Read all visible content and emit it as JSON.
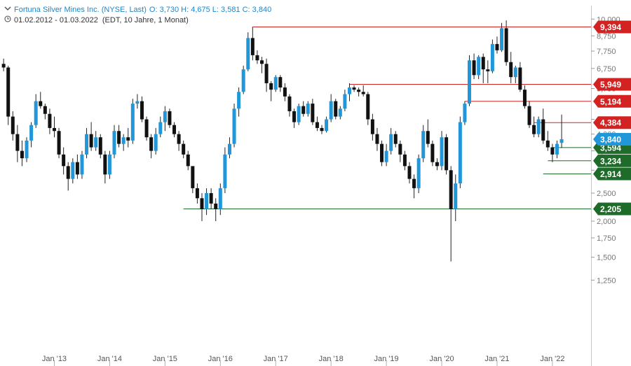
{
  "header": {
    "title": "Fortuna Silver Mines Inc. (NYSE, Last)",
    "ohlc": "O: 3,730  H: 4,675  L: 3,581  C: 3,840",
    "period": "01.02.2012 - 01.03.2022",
    "settings": "(EDT, 10 Jahre, 1 Monat)",
    "title_icon": "chevron-down-icon",
    "period_icon": "clock-icon"
  },
  "colors": {
    "up": "#2196d9",
    "down": "#111111",
    "resistance": "#d32222",
    "support": "#1e6b2a",
    "current": "#2196d9"
  },
  "chart_data": {
    "type": "candlestick",
    "x_tick_labels": [
      "Jan '13",
      "Jan '14",
      "Jan '15",
      "Jan '16",
      "Jan '17",
      "Jan '18",
      "Jan '19",
      "Jan '20",
      "Jan '21",
      "Jan '22"
    ],
    "y_tick_labels": [
      "10,000",
      "8,750",
      "7,750",
      "6,750",
      "5,750",
      "4,500",
      "4,000",
      "3,500",
      "3,000",
      "2,500",
      "2,000",
      "1,750",
      "1,500",
      "1,250"
    ],
    "y_scale": "log",
    "y_range": [
      1.25,
      10.5
    ],
    "x_range": [
      "2012-02",
      "2022-03"
    ],
    "candles": [
      {
        "t": "2012-02",
        "o": 7.0,
        "h": 7.3,
        "l": 6.6,
        "c": 6.8
      },
      {
        "t": "2012-03",
        "o": 6.8,
        "h": 6.9,
        "l": 4.3,
        "c": 4.6
      },
      {
        "t": "2012-04",
        "o": 4.6,
        "h": 4.8,
        "l": 3.8,
        "c": 4.0
      },
      {
        "t": "2012-05",
        "o": 4.0,
        "h": 4.3,
        "l": 3.2,
        "c": 3.5
      },
      {
        "t": "2012-06",
        "o": 3.5,
        "h": 3.8,
        "l": 3.1,
        "c": 3.3
      },
      {
        "t": "2012-07",
        "o": 3.3,
        "h": 3.9,
        "l": 3.2,
        "c": 3.8
      },
      {
        "t": "2012-08",
        "o": 3.8,
        "h": 4.4,
        "l": 3.6,
        "c": 4.3
      },
      {
        "t": "2012-09",
        "o": 4.3,
        "h": 5.5,
        "l": 4.2,
        "c": 5.2
      },
      {
        "t": "2012-10",
        "o": 5.2,
        "h": 5.6,
        "l": 4.9,
        "c": 5.0
      },
      {
        "t": "2012-11",
        "o": 5.0,
        "h": 5.1,
        "l": 4.5,
        "c": 4.7
      },
      {
        "t": "2012-12",
        "o": 4.7,
        "h": 4.9,
        "l": 4.0,
        "c": 4.2
      },
      {
        "t": "2013-01",
        "o": 4.2,
        "h": 4.6,
        "l": 3.9,
        "c": 4.1
      },
      {
        "t": "2013-02",
        "o": 4.1,
        "h": 4.2,
        "l": 3.3,
        "c": 3.4
      },
      {
        "t": "2013-03",
        "o": 3.4,
        "h": 3.6,
        "l": 2.9,
        "c": 3.1
      },
      {
        "t": "2013-04",
        "o": 3.1,
        "h": 3.2,
        "l": 2.55,
        "c": 2.8
      },
      {
        "t": "2013-05",
        "o": 2.8,
        "h": 3.3,
        "l": 2.7,
        "c": 3.2
      },
      {
        "t": "2013-06",
        "o": 3.2,
        "h": 3.4,
        "l": 2.8,
        "c": 2.9
      },
      {
        "t": "2013-07",
        "o": 2.9,
        "h": 3.5,
        "l": 2.8,
        "c": 3.4
      },
      {
        "t": "2013-08",
        "o": 3.4,
        "h": 4.2,
        "l": 3.3,
        "c": 4.0
      },
      {
        "t": "2013-09",
        "o": 4.0,
        "h": 4.4,
        "l": 3.5,
        "c": 3.6
      },
      {
        "t": "2013-10",
        "o": 3.6,
        "h": 4.1,
        "l": 3.5,
        "c": 3.9
      },
      {
        "t": "2013-11",
        "o": 3.9,
        "h": 4.0,
        "l": 3.3,
        "c": 3.4
      },
      {
        "t": "2013-12",
        "o": 3.4,
        "h": 3.5,
        "l": 2.7,
        "c": 2.9
      },
      {
        "t": "2014-01",
        "o": 2.9,
        "h": 3.5,
        "l": 2.8,
        "c": 3.4
      },
      {
        "t": "2014-02",
        "o": 3.4,
        "h": 4.3,
        "l": 3.3,
        "c": 4.1
      },
      {
        "t": "2014-03",
        "o": 4.1,
        "h": 4.3,
        "l": 3.6,
        "c": 3.7
      },
      {
        "t": "2014-04",
        "o": 3.7,
        "h": 4.0,
        "l": 3.5,
        "c": 3.9
      },
      {
        "t": "2014-05",
        "o": 3.9,
        "h": 4.2,
        "l": 3.6,
        "c": 3.8
      },
      {
        "t": "2014-06",
        "o": 3.8,
        "h": 5.3,
        "l": 3.7,
        "c": 5.1
      },
      {
        "t": "2014-07",
        "o": 5.1,
        "h": 5.5,
        "l": 4.9,
        "c": 5.2
      },
      {
        "t": "2014-08",
        "o": 5.2,
        "h": 5.4,
        "l": 4.4,
        "c": 4.5
      },
      {
        "t": "2014-09",
        "o": 4.5,
        "h": 4.6,
        "l": 3.8,
        "c": 3.9
      },
      {
        "t": "2014-10",
        "o": 3.9,
        "h": 4.0,
        "l": 3.3,
        "c": 3.5
      },
      {
        "t": "2014-11",
        "o": 3.5,
        "h": 4.2,
        "l": 3.4,
        "c": 4.0
      },
      {
        "t": "2014-12",
        "o": 4.0,
        "h": 4.6,
        "l": 3.9,
        "c": 4.4
      },
      {
        "t": "2015-01",
        "o": 4.4,
        "h": 5.0,
        "l": 4.1,
        "c": 4.8
      },
      {
        "t": "2015-02",
        "o": 4.8,
        "h": 4.9,
        "l": 4.2,
        "c": 4.3
      },
      {
        "t": "2015-03",
        "o": 4.3,
        "h": 4.4,
        "l": 3.9,
        "c": 4.0
      },
      {
        "t": "2015-04",
        "o": 4.0,
        "h": 4.1,
        "l": 3.5,
        "c": 3.7
      },
      {
        "t": "2015-05",
        "o": 3.7,
        "h": 3.8,
        "l": 3.3,
        "c": 3.4
      },
      {
        "t": "2015-06",
        "o": 3.4,
        "h": 3.5,
        "l": 3.0,
        "c": 3.1
      },
      {
        "t": "2015-07",
        "o": 3.1,
        "h": 3.1,
        "l": 2.5,
        "c": 2.6
      },
      {
        "t": "2015-08",
        "o": 2.6,
        "h": 2.7,
        "l": 2.3,
        "c": 2.4
      },
      {
        "t": "2015-09",
        "o": 2.4,
        "h": 2.5,
        "l": 2.0,
        "c": 2.2
      },
      {
        "t": "2015-10",
        "o": 2.2,
        "h": 2.6,
        "l": 2.1,
        "c": 2.5
      },
      {
        "t": "2015-11",
        "o": 2.5,
        "h": 2.6,
        "l": 2.2,
        "c": 2.3
      },
      {
        "t": "2015-12",
        "o": 2.3,
        "h": 2.4,
        "l": 2.0,
        "c": 2.2
      },
      {
        "t": "2016-01",
        "o": 2.2,
        "h": 2.7,
        "l": 2.1,
        "c": 2.6
      },
      {
        "t": "2016-02",
        "o": 2.6,
        "h": 3.6,
        "l": 2.5,
        "c": 3.4
      },
      {
        "t": "2016-03",
        "o": 3.4,
        "h": 3.9,
        "l": 3.3,
        "c": 3.7
      },
      {
        "t": "2016-04",
        "o": 3.7,
        "h": 5.1,
        "l": 3.6,
        "c": 4.9
      },
      {
        "t": "2016-05",
        "o": 4.9,
        "h": 5.8,
        "l": 4.6,
        "c": 5.6
      },
      {
        "t": "2016-06",
        "o": 5.6,
        "h": 6.9,
        "l": 5.5,
        "c": 6.7
      },
      {
        "t": "2016-07",
        "o": 6.7,
        "h": 9.0,
        "l": 6.6,
        "c": 8.6
      },
      {
        "t": "2016-08",
        "o": 8.6,
        "h": 9.4,
        "l": 7.2,
        "c": 7.5
      },
      {
        "t": "2016-09",
        "o": 7.5,
        "h": 7.8,
        "l": 7.0,
        "c": 7.2
      },
      {
        "t": "2016-10",
        "o": 7.2,
        "h": 7.4,
        "l": 6.5,
        "c": 7.0
      },
      {
        "t": "2016-11",
        "o": 7.0,
        "h": 7.3,
        "l": 5.6,
        "c": 6.0
      },
      {
        "t": "2016-12",
        "o": 6.0,
        "h": 6.1,
        "l": 5.2,
        "c": 5.7
      },
      {
        "t": "2017-01",
        "o": 5.7,
        "h": 6.4,
        "l": 5.6,
        "c": 6.3
      },
      {
        "t": "2017-02",
        "o": 6.3,
        "h": 6.4,
        "l": 5.6,
        "c": 5.8
      },
      {
        "t": "2017-03",
        "o": 5.8,
        "h": 6.0,
        "l": 5.2,
        "c": 5.4
      },
      {
        "t": "2017-04",
        "o": 5.4,
        "h": 5.5,
        "l": 4.6,
        "c": 4.8
      },
      {
        "t": "2017-05",
        "o": 4.8,
        "h": 4.9,
        "l": 4.2,
        "c": 4.4
      },
      {
        "t": "2017-06",
        "o": 4.4,
        "h": 5.1,
        "l": 4.3,
        "c": 5.0
      },
      {
        "t": "2017-07",
        "o": 5.0,
        "h": 5.2,
        "l": 4.6,
        "c": 4.7
      },
      {
        "t": "2017-08",
        "o": 4.7,
        "h": 5.2,
        "l": 4.6,
        "c": 5.1
      },
      {
        "t": "2017-09",
        "o": 5.1,
        "h": 5.3,
        "l": 4.3,
        "c": 4.4
      },
      {
        "t": "2017-10",
        "o": 4.4,
        "h": 4.6,
        "l": 4.1,
        "c": 4.2
      },
      {
        "t": "2017-11",
        "o": 4.2,
        "h": 4.3,
        "l": 4.0,
        "c": 4.1
      },
      {
        "t": "2017-12",
        "o": 4.1,
        "h": 4.6,
        "l": 4.05,
        "c": 4.5
      },
      {
        "t": "2018-01",
        "o": 4.5,
        "h": 5.5,
        "l": 4.4,
        "c": 5.2
      },
      {
        "t": "2018-02",
        "o": 5.2,
        "h": 5.3,
        "l": 4.5,
        "c": 4.6
      },
      {
        "t": "2018-03",
        "o": 4.6,
        "h": 5.0,
        "l": 4.5,
        "c": 4.9
      },
      {
        "t": "2018-04",
        "o": 4.9,
        "h": 5.7,
        "l": 4.8,
        "c": 5.5
      },
      {
        "t": "2018-05",
        "o": 5.5,
        "h": 6.0,
        "l": 5.2,
        "c": 5.8
      },
      {
        "t": "2018-06",
        "o": 5.8,
        "h": 5.9,
        "l": 5.6,
        "c": 5.7
      },
      {
        "t": "2018-07",
        "o": 5.7,
        "h": 5.8,
        "l": 5.4,
        "c": 5.6
      },
      {
        "t": "2018-08",
        "o": 5.6,
        "h": 5.9,
        "l": 5.4,
        "c": 5.5
      },
      {
        "t": "2018-09",
        "o": 5.5,
        "h": 5.6,
        "l": 4.3,
        "c": 4.5
      },
      {
        "t": "2018-10",
        "o": 4.5,
        "h": 4.7,
        "l": 3.8,
        "c": 4.0
      },
      {
        "t": "2018-11",
        "o": 4.0,
        "h": 4.2,
        "l": 3.5,
        "c": 3.7
      },
      {
        "t": "2018-12",
        "o": 3.7,
        "h": 3.8,
        "l": 3.1,
        "c": 3.2
      },
      {
        "t": "2019-01",
        "o": 3.2,
        "h": 3.7,
        "l": 3.1,
        "c": 3.5
      },
      {
        "t": "2019-02",
        "o": 3.5,
        "h": 4.2,
        "l": 3.4,
        "c": 4.0
      },
      {
        "t": "2019-03",
        "o": 4.0,
        "h": 4.1,
        "l": 3.6,
        "c": 3.7
      },
      {
        "t": "2019-04",
        "o": 3.7,
        "h": 3.8,
        "l": 3.2,
        "c": 3.4
      },
      {
        "t": "2019-05",
        "o": 3.4,
        "h": 3.5,
        "l": 3.0,
        "c": 3.1
      },
      {
        "t": "2019-06",
        "o": 3.1,
        "h": 3.2,
        "l": 2.7,
        "c": 2.8
      },
      {
        "t": "2019-07",
        "o": 2.8,
        "h": 2.9,
        "l": 2.4,
        "c": 2.6
      },
      {
        "t": "2019-08",
        "o": 2.6,
        "h": 3.4,
        "l": 2.5,
        "c": 3.3
      },
      {
        "t": "2019-09",
        "o": 3.3,
        "h": 4.3,
        "l": 3.2,
        "c": 4.1
      },
      {
        "t": "2019-10",
        "o": 4.1,
        "h": 4.5,
        "l": 3.6,
        "c": 3.7
      },
      {
        "t": "2019-11",
        "o": 3.7,
        "h": 3.8,
        "l": 3.1,
        "c": 3.2
      },
      {
        "t": "2019-12",
        "o": 3.2,
        "h": 3.3,
        "l": 3.0,
        "c": 3.1
      },
      {
        "t": "2020-01",
        "o": 3.1,
        "h": 4.1,
        "l": 3.0,
        "c": 3.9
      },
      {
        "t": "2020-02",
        "o": 3.9,
        "h": 4.0,
        "l": 2.9,
        "c": 3.0
      },
      {
        "t": "2020-03",
        "o": 3.0,
        "h": 3.1,
        "l": 1.45,
        "c": 2.2
      },
      {
        "t": "2020-04",
        "o": 2.2,
        "h": 2.9,
        "l": 2.0,
        "c": 2.7
      },
      {
        "t": "2020-05",
        "o": 2.7,
        "h": 4.6,
        "l": 2.6,
        "c": 4.4
      },
      {
        "t": "2020-06",
        "o": 4.4,
        "h": 5.2,
        "l": 4.3,
        "c": 5.1
      },
      {
        "t": "2020-07",
        "o": 5.1,
        "h": 7.5,
        "l": 5.0,
        "c": 7.2
      },
      {
        "t": "2020-08",
        "o": 7.2,
        "h": 7.6,
        "l": 6.2,
        "c": 6.4
      },
      {
        "t": "2020-09",
        "o": 6.4,
        "h": 7.5,
        "l": 6.2,
        "c": 7.4
      },
      {
        "t": "2020-10",
        "o": 7.4,
        "h": 7.6,
        "l": 6.0,
        "c": 6.7
      },
      {
        "t": "2020-11",
        "o": 6.7,
        "h": 7.2,
        "l": 6.0,
        "c": 6.6
      },
      {
        "t": "2020-12",
        "o": 6.6,
        "h": 8.5,
        "l": 6.5,
        "c": 8.2
      },
      {
        "t": "2021-01",
        "o": 8.2,
        "h": 8.7,
        "l": 7.6,
        "c": 7.8
      },
      {
        "t": "2021-02",
        "o": 7.8,
        "h": 9.7,
        "l": 7.7,
        "c": 9.3
      },
      {
        "t": "2021-03",
        "o": 9.3,
        "h": 9.9,
        "l": 6.9,
        "c": 7.1
      },
      {
        "t": "2021-04",
        "o": 7.1,
        "h": 7.7,
        "l": 6.0,
        "c": 6.3
      },
      {
        "t": "2021-05",
        "o": 6.3,
        "h": 6.9,
        "l": 6.0,
        "c": 6.8
      },
      {
        "t": "2021-06",
        "o": 6.8,
        "h": 7.1,
        "l": 5.6,
        "c": 5.7
      },
      {
        "t": "2021-07",
        "o": 5.7,
        "h": 5.9,
        "l": 4.9,
        "c": 5.0
      },
      {
        "t": "2021-08",
        "o": 5.0,
        "h": 5.2,
        "l": 4.2,
        "c": 4.3
      },
      {
        "t": "2021-09",
        "o": 4.3,
        "h": 4.6,
        "l": 3.9,
        "c": 4.0
      },
      {
        "t": "2021-10",
        "o": 4.0,
        "h": 4.6,
        "l": 3.9,
        "c": 4.5
      },
      {
        "t": "2021-11",
        "o": 4.5,
        "h": 4.9,
        "l": 3.7,
        "c": 3.8
      },
      {
        "t": "2021-12",
        "o": 3.8,
        "h": 4.1,
        "l": 3.5,
        "c": 3.6
      },
      {
        "t": "2022-01",
        "o": 3.6,
        "h": 3.7,
        "l": 3.2,
        "c": 3.4
      },
      {
        "t": "2022-02",
        "o": 3.4,
        "h": 3.8,
        "l": 3.3,
        "c": 3.7
      },
      {
        "t": "2022-03",
        "o": 3.73,
        "h": 4.675,
        "l": 3.581,
        "c": 3.84
      }
    ],
    "levels": [
      {
        "value": 9.394,
        "label": "9,394",
        "kind": "resistance",
        "from": "2016-08"
      },
      {
        "value": 5.949,
        "label": "5,949",
        "kind": "resistance",
        "from": "2018-05"
      },
      {
        "value": 5.194,
        "label": "5,194",
        "kind": "resistance",
        "from": "2020-06"
      },
      {
        "value": 4.384,
        "label": "4,384",
        "kind": "resistance",
        "from": "2021-09"
      },
      {
        "value": 3.594,
        "label": "3,594",
        "kind": "support",
        "from": "2022-01"
      },
      {
        "value": 3.234,
        "label": "3,234",
        "kind": "support",
        "from": "2021-12"
      },
      {
        "value": 2.914,
        "label": "2,914",
        "kind": "support",
        "from": "2021-11"
      },
      {
        "value": 2.205,
        "label": "2,205",
        "kind": "support",
        "from": "2015-05"
      }
    ],
    "current": {
      "value": 3.84,
      "label": "3,840"
    }
  }
}
